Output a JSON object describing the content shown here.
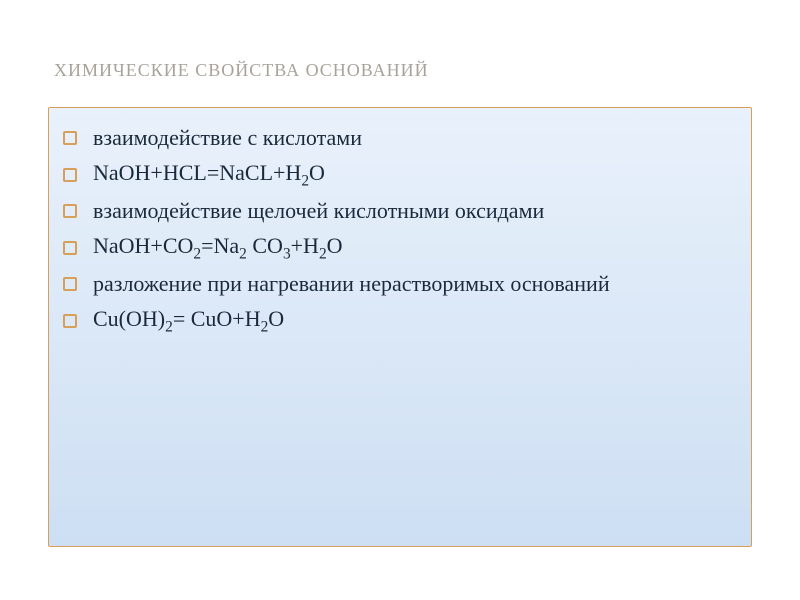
{
  "slide": {
    "title": "ХИМИЧЕСКИЕ СВОЙСТВА ОСНОВАНИЙ",
    "lines": [
      {
        "text": "взаимодействие с кислотами",
        "type": "text"
      },
      {
        "text": "NaOH+HCL=NaCL+H2O",
        "type": "formula",
        "parts": [
          "NaOH+HCL=NaCL+H",
          "2",
          "O"
        ]
      },
      {
        "text": "взаимодействие щелочей кислотными оксидами",
        "type": "text"
      },
      {
        "text": "NaOH+CO2=Na2 CO3+H2O",
        "type": "formula",
        "parts": [
          "NaOH+CO",
          "2",
          "=Na",
          "2",
          " CO",
          "3",
          "+H",
          "2",
          "O"
        ]
      },
      {
        "text": "разложение при нагревании нерастворимых оснований",
        "type": "text"
      },
      {
        "text": "Cu(OH)2= CuO+H2O",
        "type": "formula",
        "parts": [
          "Cu(OH)",
          "2",
          "= CuO+H",
          "2",
          "O"
        ]
      }
    ],
    "styling": {
      "slide_width": 800,
      "slide_height": 600,
      "background_color": "#ffffff",
      "title_color": "#a8a39a",
      "title_fontsize": 18,
      "title_small_caps": true,
      "box_gradient_top": "#e9f1fb",
      "box_gradient_bottom": "#cddff3",
      "box_border_color": "#d6a05a",
      "bullet_border_color": "#d6a05a",
      "bullet_size": 14,
      "text_color": "#1a2a3a",
      "text_fontsize": 22,
      "font_family": "Georgia, Times New Roman, serif"
    }
  }
}
